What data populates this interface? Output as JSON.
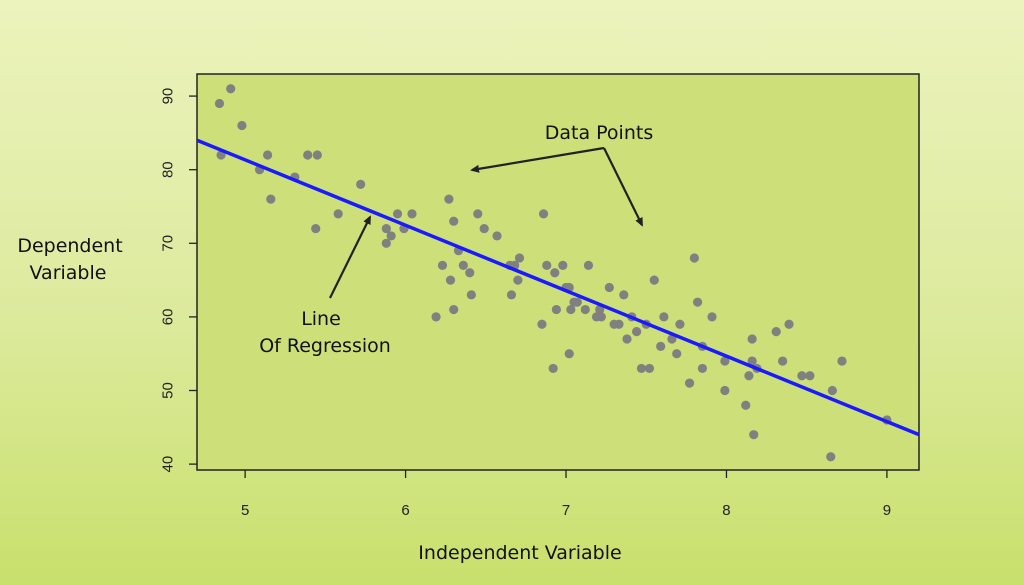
{
  "chart_data": {
    "type": "scatter",
    "xlabel": "Independent Variable",
    "ylabel_lines": [
      "Dependent",
      "Variable"
    ],
    "xlim": [
      4.7,
      9.2
    ],
    "ylim": [
      39.2,
      93
    ],
    "xticks": [
      5,
      6,
      7,
      8,
      9
    ],
    "yticks": [
      40,
      50,
      60,
      70,
      80,
      90
    ],
    "regression_line": {
      "x": [
        4.7,
        9.2
      ],
      "y": [
        84.0,
        44.0
      ],
      "color": "#1a1aff"
    },
    "point_color": "#808080",
    "points": [
      [
        4.84,
        89
      ],
      [
        4.91,
        91
      ],
      [
        4.85,
        82
      ],
      [
        4.98,
        86
      ],
      [
        5.09,
        80
      ],
      [
        5.14,
        82
      ],
      [
        5.16,
        76
      ],
      [
        5.31,
        79
      ],
      [
        5.39,
        82
      ],
      [
        5.45,
        82
      ],
      [
        5.44,
        72
      ],
      [
        5.58,
        74
      ],
      [
        5.72,
        78
      ],
      [
        5.88,
        72
      ],
      [
        5.88,
        70
      ],
      [
        5.91,
        71
      ],
      [
        5.95,
        74
      ],
      [
        5.99,
        72
      ],
      [
        6.04,
        74
      ],
      [
        6.19,
        60
      ],
      [
        6.23,
        67
      ],
      [
        6.27,
        76
      ],
      [
        6.28,
        65
      ],
      [
        6.3,
        73
      ],
      [
        6.3,
        61
      ],
      [
        6.33,
        69
      ],
      [
        6.36,
        67
      ],
      [
        6.4,
        66
      ],
      [
        6.41,
        63
      ],
      [
        6.45,
        74
      ],
      [
        6.49,
        72
      ],
      [
        6.57,
        71
      ],
      [
        6.65,
        67
      ],
      [
        6.66,
        63
      ],
      [
        6.68,
        67
      ],
      [
        6.7,
        65
      ],
      [
        6.71,
        68
      ],
      [
        6.85,
        59
      ],
      [
        6.86,
        74
      ],
      [
        6.88,
        67
      ],
      [
        6.92,
        53
      ],
      [
        6.93,
        66
      ],
      [
        6.94,
        61
      ],
      [
        6.98,
        67
      ],
      [
        7.0,
        64
      ],
      [
        7.02,
        64
      ],
      [
        7.02,
        55
      ],
      [
        7.03,
        61
      ],
      [
        7.05,
        62
      ],
      [
        7.07,
        62
      ],
      [
        7.12,
        61
      ],
      [
        7.14,
        67
      ],
      [
        7.19,
        60
      ],
      [
        7.21,
        61
      ],
      [
        7.22,
        60
      ],
      [
        7.27,
        64
      ],
      [
        7.3,
        59
      ],
      [
        7.33,
        59
      ],
      [
        7.36,
        63
      ],
      [
        7.38,
        57
      ],
      [
        7.41,
        60
      ],
      [
        7.44,
        58
      ],
      [
        7.47,
        53
      ],
      [
        7.5,
        59
      ],
      [
        7.52,
        53
      ],
      [
        7.55,
        65
      ],
      [
        7.59,
        56
      ],
      [
        7.61,
        60
      ],
      [
        7.66,
        57
      ],
      [
        7.69,
        55
      ],
      [
        7.71,
        59
      ],
      [
        7.77,
        51
      ],
      [
        7.8,
        68
      ],
      [
        7.82,
        62
      ],
      [
        7.85,
        56
      ],
      [
        7.85,
        53
      ],
      [
        7.91,
        60
      ],
      [
        7.99,
        54
      ],
      [
        7.99,
        50
      ],
      [
        8.12,
        48
      ],
      [
        8.14,
        52
      ],
      [
        8.16,
        57
      ],
      [
        8.16,
        54
      ],
      [
        8.17,
        44
      ],
      [
        8.19,
        53
      ],
      [
        8.31,
        58
      ],
      [
        8.35,
        54
      ],
      [
        8.39,
        59
      ],
      [
        8.47,
        52
      ],
      [
        8.52,
        52
      ],
      [
        8.65,
        41
      ],
      [
        8.66,
        50
      ],
      [
        8.72,
        54
      ],
      [
        9.0,
        46
      ]
    ],
    "annotations": [
      {
        "id": "data-points",
        "text_lines": [
          "Data Points"
        ]
      },
      {
        "id": "line-of-regression",
        "text_lines": [
          "Line",
          "Of Regression"
        ]
      }
    ]
  }
}
